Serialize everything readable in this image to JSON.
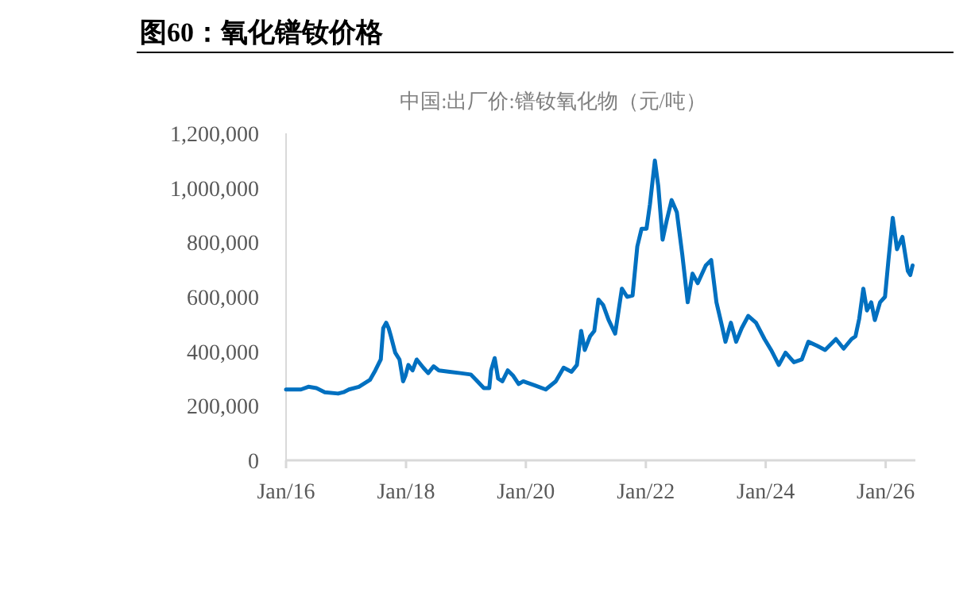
{
  "chart_data": {
    "type": "line",
    "title": "图60：氧化镨钕价格",
    "subtitle": "中国:出厂价:镨钕氧化物（元/吨）",
    "xlim": [
      "2016-01-01",
      "2026-07-01"
    ],
    "ylim": [
      0,
      1200000
    ],
    "xticks": [
      {
        "value": "2016-01",
        "label": "Jan/16"
      },
      {
        "value": "2018-01",
        "label": "Jan/18"
      },
      {
        "value": "2020-01",
        "label": "Jan/20"
      },
      {
        "value": "2022-01",
        "label": "Jan/22"
      },
      {
        "value": "2024-01",
        "label": "Jan/24"
      },
      {
        "value": "2026-01",
        "label": "Jan/26"
      }
    ],
    "yticks": [
      {
        "value": 0,
        "label": "0"
      },
      {
        "value": 200000,
        "label": "200,000"
      },
      {
        "value": 400000,
        "label": "400,000"
      },
      {
        "value": 600000,
        "label": "600,000"
      },
      {
        "value": 800000,
        "label": "800,000"
      },
      {
        "value": 1000000,
        "label": "1,000,000"
      },
      {
        "value": 1200000,
        "label": "1,200,000"
      }
    ],
    "series": [
      {
        "color": "#0070c0",
        "x": [
          "2016-01-01",
          "2016-04-01",
          "2016-05-16",
          "2016-07-04",
          "2016-08-24",
          "2016-11-13",
          "2016-12-16",
          "2017-01-18",
          "2017-03-20",
          "2017-05-26",
          "2017-06-28",
          "2017-07-31",
          "2017-08-15",
          "2017-09-02",
          "2017-09-17",
          "2017-10-01",
          "2017-10-27",
          "2017-11-22",
          "2017-12-14",
          "2017-12-28",
          "2018-01-15",
          "2018-02-10",
          "2018-03-07",
          "2018-04-16",
          "2018-05-16",
          "2018-06-18",
          "2018-07-20",
          "2018-09-24",
          "2018-11-28",
          "2019-01-30",
          "2019-03-04",
          "2019-04-20",
          "2019-05-23",
          "2019-06-03",
          "2019-06-25",
          "2019-07-16",
          "2019-08-11",
          "2019-09-13",
          "2019-10-16",
          "2019-11-18",
          "2019-12-16",
          "2020-01-08",
          "2020-02-25",
          "2020-05-01",
          "2020-07-01",
          "2020-08-18",
          "2020-10-05",
          "2020-11-07",
          "2020-12-03",
          "2020-12-25",
          "2021-01-26",
          "2021-02-21",
          "2021-03-18",
          "2021-04-16",
          "2021-05-19",
          "2021-06-28",
          "2021-08-08",
          "2021-09-09",
          "2021-10-12",
          "2021-11-10",
          "2021-12-06",
          "2022-01-05",
          "2022-01-26",
          "2022-02-25",
          "2022-03-18",
          "2022-04-13",
          "2022-05-08",
          "2022-06-07",
          "2022-07-09",
          "2022-08-11",
          "2022-09-13",
          "2022-10-12",
          "2022-11-13",
          "2023-01-01",
          "2023-02-03",
          "2023-03-07",
          "2023-04-09",
          "2023-05-01",
          "2023-06-03",
          "2023-07-05",
          "2023-08-08",
          "2023-09-17",
          "2023-11-03",
          "2023-12-25",
          "2024-02-03",
          "2024-03-21",
          "2024-05-01",
          "2024-06-21",
          "2024-08-08",
          "2024-09-17",
          "2024-11-10",
          "2024-12-28",
          "2025-03-04",
          "2025-04-20",
          "2025-06-07",
          "2025-07-01",
          "2025-07-24",
          "2025-08-18",
          "2025-09-09",
          "2025-10-05",
          "2025-10-27",
          "2025-11-28",
          "2025-12-28",
          "2026-01-18",
          "2026-02-13",
          "2026-03-11",
          "2026-04-13",
          "2026-05-16",
          "2026-05-31",
          "2026-06-14"
        ],
        "values": [
          260000,
          260000,
          270000,
          265000,
          250000,
          245000,
          250000,
          260000,
          270000,
          295000,
          330000,
          370000,
          485000,
          505000,
          485000,
          455000,
          395000,
          370000,
          290000,
          310000,
          350000,
          330000,
          370000,
          340000,
          320000,
          345000,
          330000,
          325000,
          320000,
          315000,
          295000,
          265000,
          265000,
          330000,
          375000,
          300000,
          290000,
          330000,
          310000,
          280000,
          290000,
          285000,
          275000,
          260000,
          290000,
          340000,
          325000,
          350000,
          475000,
          405000,
          455000,
          475000,
          590000,
          570000,
          515000,
          465000,
          630000,
          600000,
          605000,
          785000,
          850000,
          850000,
          940000,
          1100000,
          1005000,
          810000,
          880000,
          955000,
          910000,
          755000,
          580000,
          685000,
          650000,
          715000,
          735000,
          580000,
          495000,
          435000,
          505000,
          435000,
          485000,
          530000,
          505000,
          445000,
          405000,
          350000,
          395000,
          360000,
          370000,
          435000,
          420000,
          405000,
          445000,
          410000,
          445000,
          455000,
          520000,
          630000,
          550000,
          580000,
          515000,
          580000,
          600000,
          735000,
          890000,
          775000,
          820000,
          695000,
          680000,
          715000
        ]
      }
    ]
  }
}
